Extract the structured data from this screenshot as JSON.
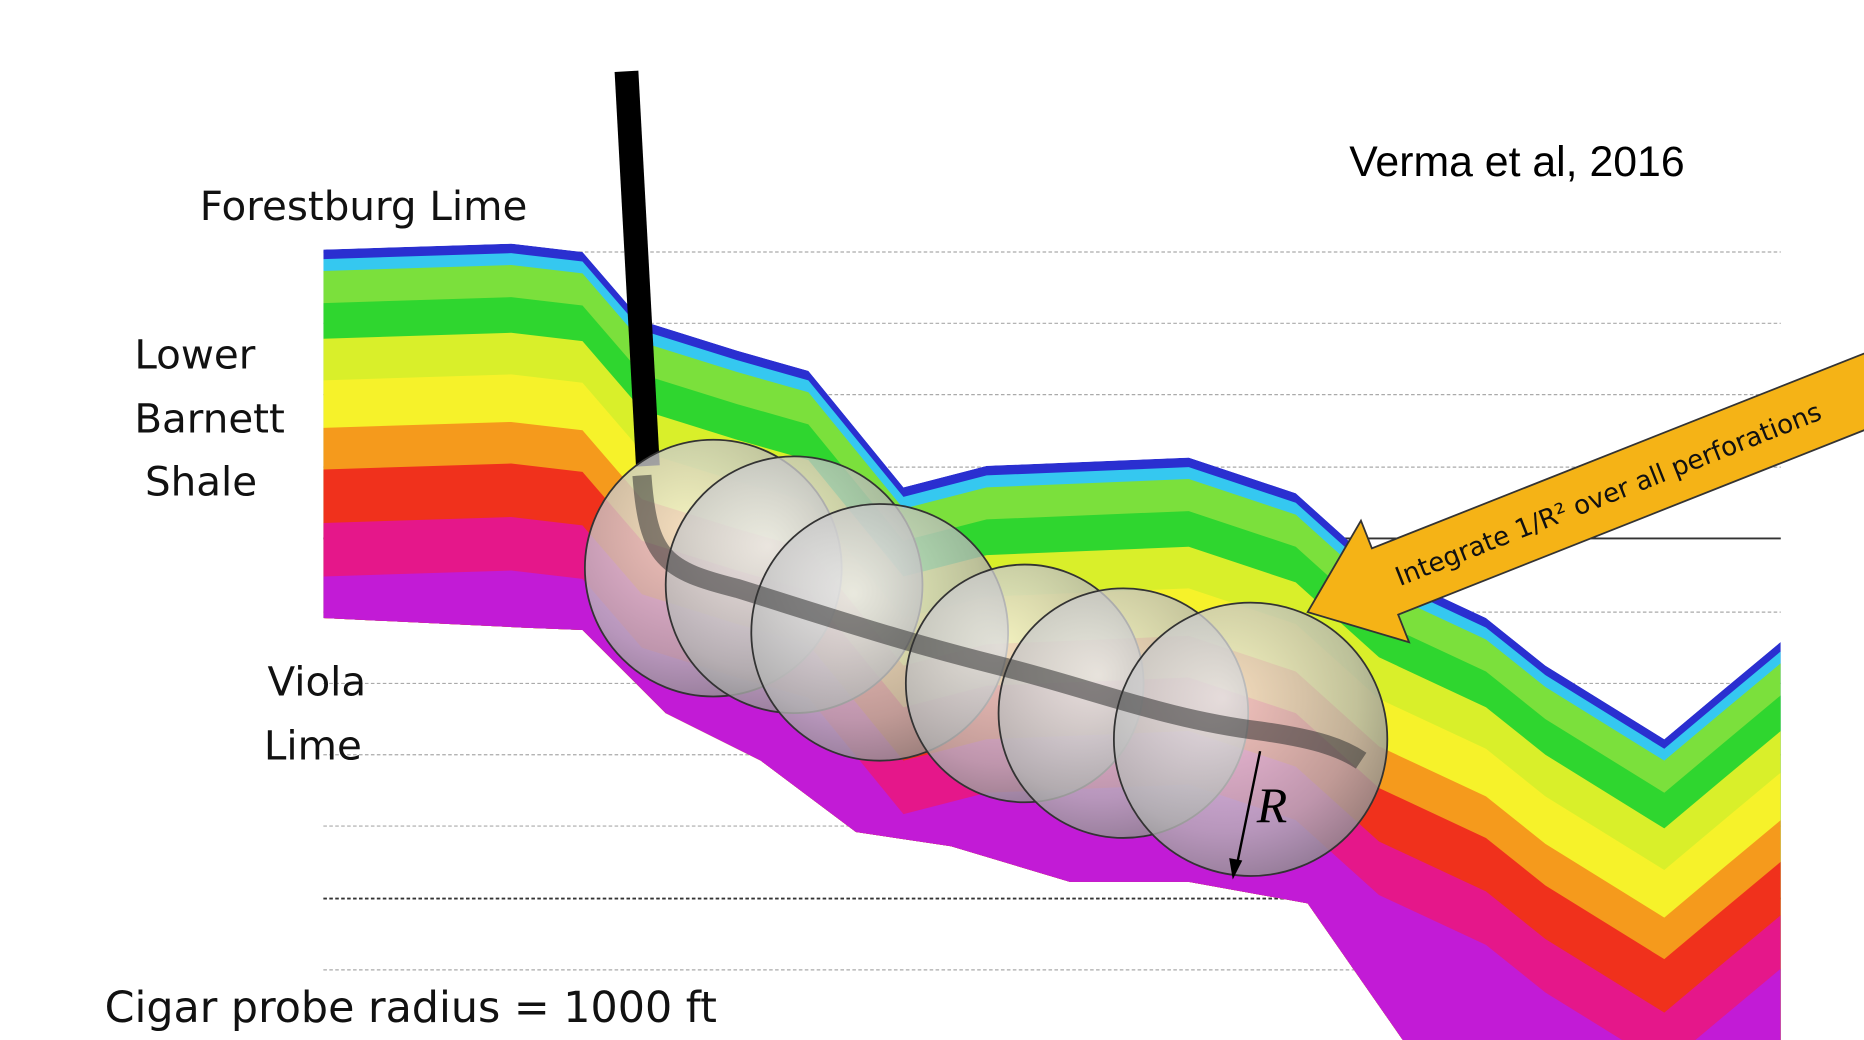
{
  "labels": {
    "forestburg": "Forestburg Lime",
    "barnett": [
      "Lower",
      "Barnett",
      "Shale"
    ],
    "viola": [
      "Viola",
      "Lime"
    ],
    "citation": "Verma et al, 2016",
    "caption": "Cigar probe radius = 1000 ft",
    "arrow_note": "Integrate 1/R² over all perforations",
    "radius_symbol": "R"
  }
}
